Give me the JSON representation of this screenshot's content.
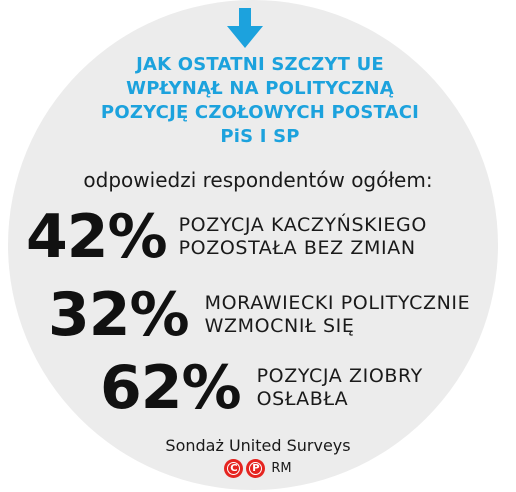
{
  "headline": {
    "lines": [
      "JAK OSTATNI SZCZYT UE",
      "WPŁYNĄŁ NA POLITYCZNĄ",
      "POZYCJĘ CZOŁOWYCH POSTACI",
      "PiS I SP"
    ],
    "color": "#1ca2dd"
  },
  "subtitle": "odpowiedzi respondentów ogółem:",
  "stats": [
    {
      "value": "42%",
      "label_lines": [
        "POZYCJA KACZYŃSKIEGO",
        "POZOSTAŁA BEZ ZMIAN"
      ]
    },
    {
      "value": "32%",
      "label_lines": [
        "MORAWIECKI POLITYCZNIE",
        "WZMOCNIŁ SIĘ"
      ]
    },
    {
      "value": "62%",
      "label_lines": [
        "POZYCJA ZIOBRY",
        "OSŁABŁA"
      ]
    }
  ],
  "source": "Sondaż United Surveys",
  "credits": {
    "badges": [
      "C",
      "P"
    ],
    "text": "RM",
    "badge_color": "#e52420"
  },
  "icons": {
    "arrow": "arrow-down-icon"
  }
}
